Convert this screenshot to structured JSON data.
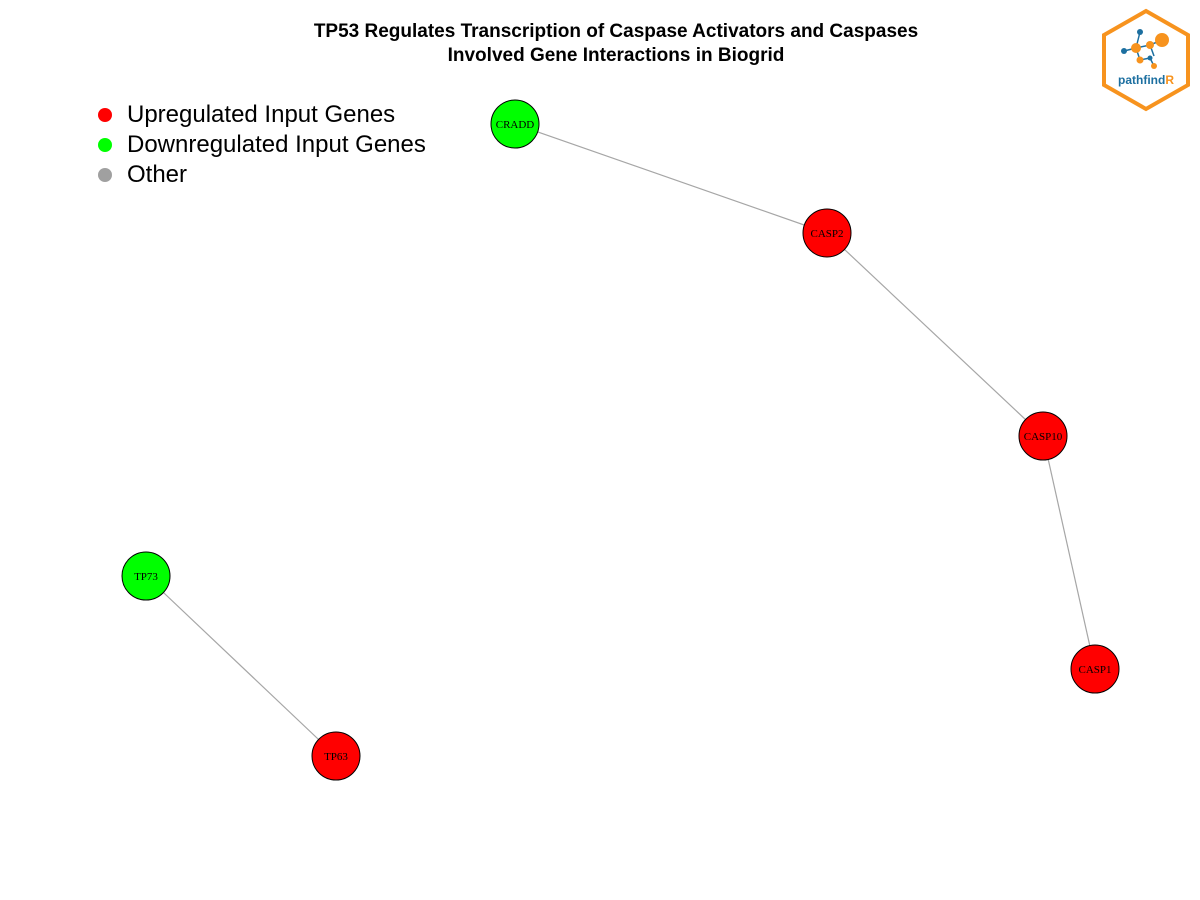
{
  "title": {
    "line1": "TP53 Regulates Transcription of Caspase Activators and Caspases",
    "line2": "Involved Gene Interactions in Biogrid"
  },
  "legend": [
    {
      "label": "Upregulated Input Genes",
      "color": "#ff0000"
    },
    {
      "label": "Downregulated Input Genes",
      "color": "#00ff00"
    },
    {
      "label": "Other",
      "color": "#a0a0a0"
    }
  ],
  "colors": {
    "up": "#ff0000",
    "down": "#00ff00",
    "edge": "#a6a6a6",
    "node_border": "#000000",
    "logo_orange": "#f7931e",
    "logo_blue": "#1c6fa0"
  },
  "network": {
    "nodes": [
      {
        "id": "CRADD",
        "status": "down"
      },
      {
        "id": "CASP2",
        "status": "up"
      },
      {
        "id": "CASP10",
        "status": "up"
      },
      {
        "id": "CASP1",
        "status": "up"
      },
      {
        "id": "TP73",
        "status": "down"
      },
      {
        "id": "TP63",
        "status": "up"
      }
    ],
    "edges": [
      [
        "CRADD",
        "CASP2"
      ],
      [
        "CASP2",
        "CASP10"
      ],
      [
        "CASP10",
        "CASP1"
      ],
      [
        "TP73",
        "TP63"
      ]
    ]
  },
  "logo": {
    "text_main": "pathfind",
    "text_accent": "R"
  }
}
